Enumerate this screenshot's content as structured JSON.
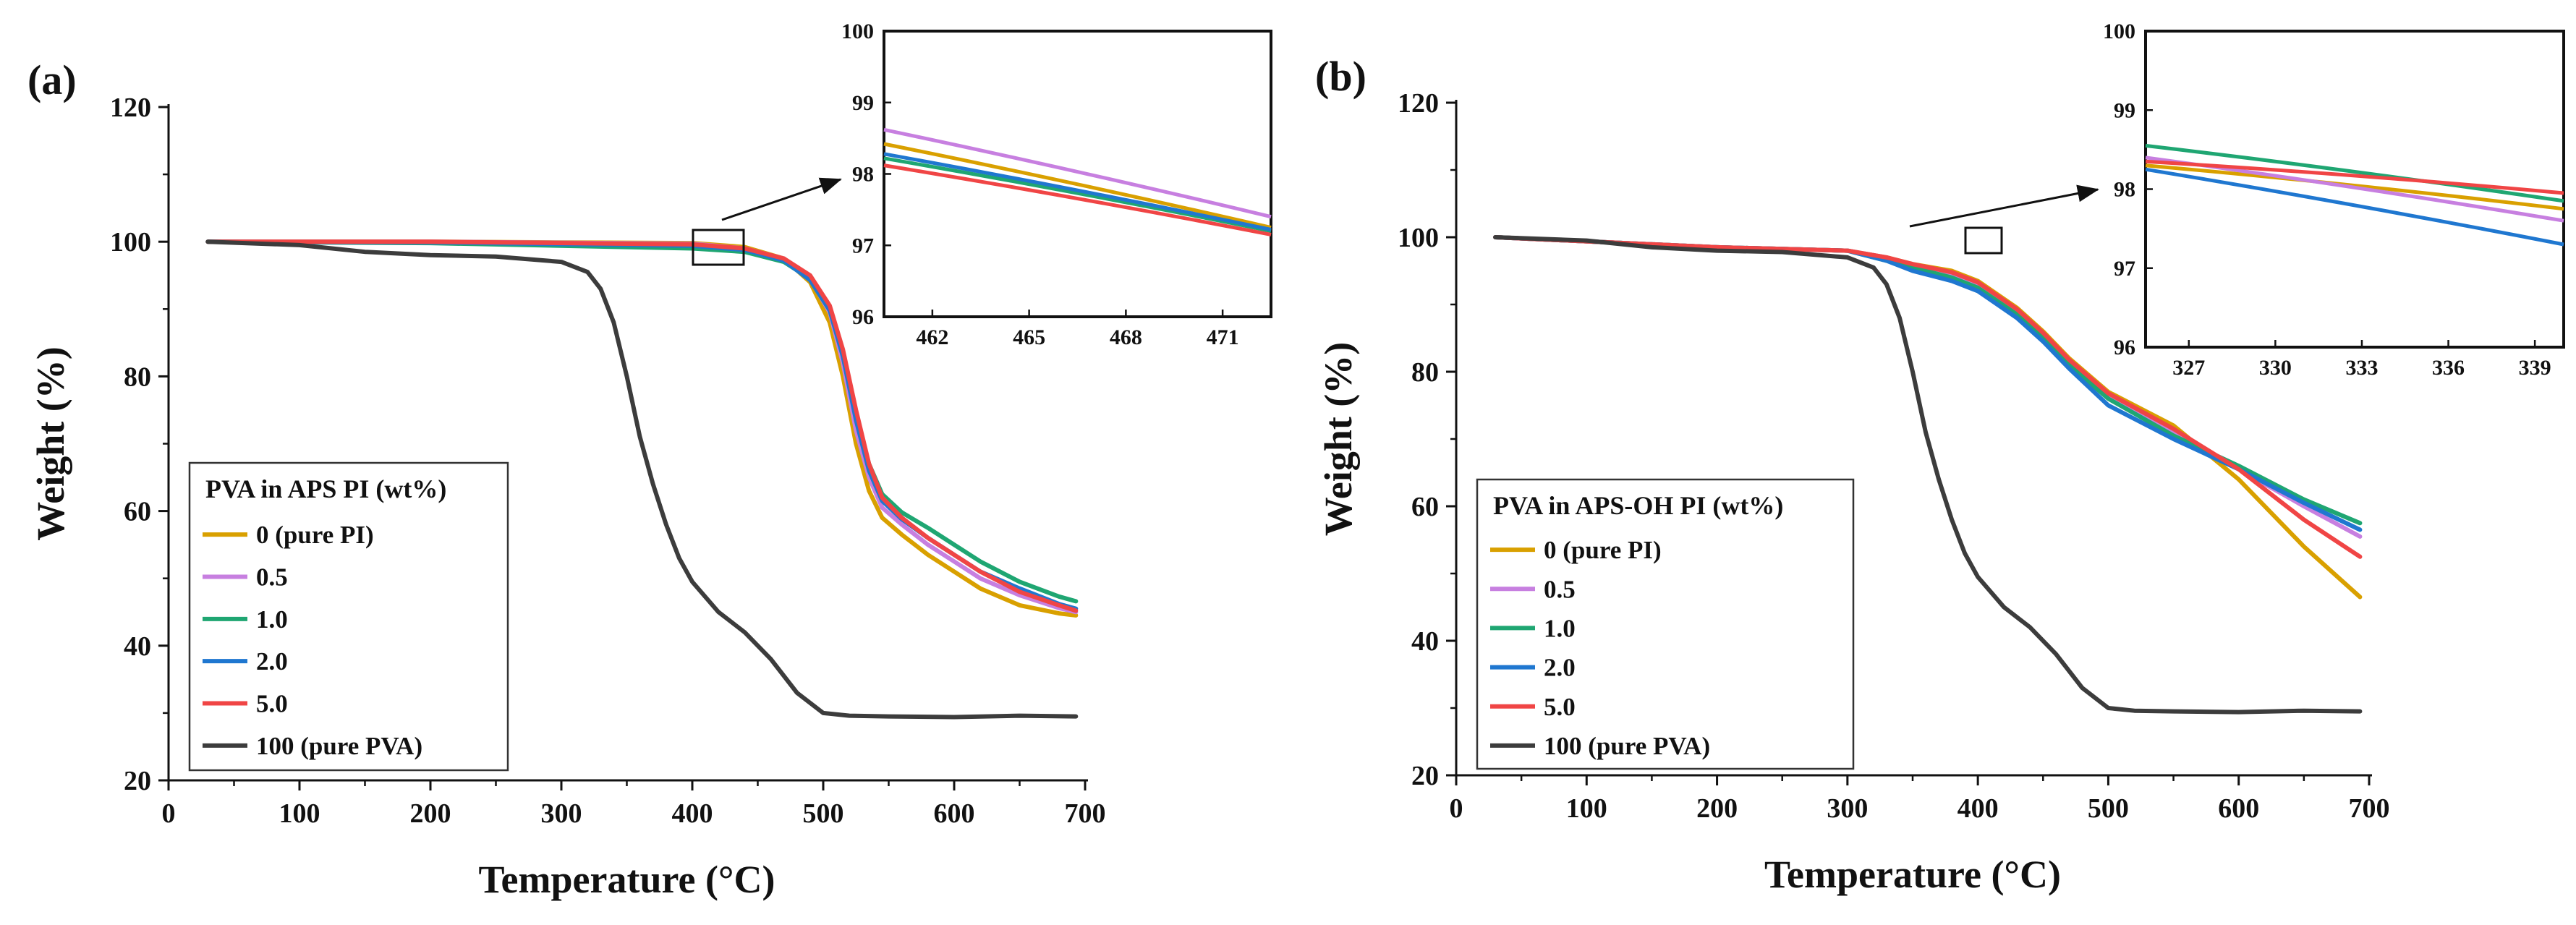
{
  "panels": [
    {
      "panel_label": "(a)",
      "legend_title": "PVA in APS PI (wt%)",
      "chart_data": {
        "type": "line",
        "title": "",
        "xlabel": "Temperature (°C)",
        "ylabel": "Weight (%)",
        "xlim": [
          0,
          700
        ],
        "ylim": [
          20,
          120
        ],
        "xticks": [
          0,
          100,
          200,
          300,
          400,
          500,
          600,
          700
        ],
        "yticks": [
          20,
          40,
          60,
          80,
          100,
          120
        ],
        "legend_position": "bottom-left",
        "series": [
          {
            "name": "0 (pure PI)",
            "color": "#D9A000",
            "x": [
              30,
              200,
              400,
              440,
              470,
              490,
              505,
              515,
              525,
              535,
              545,
              560,
              580,
              600,
              620,
              650,
              680,
              693
            ],
            "y": [
              100,
              100,
              99.8,
              99.2,
              97.5,
              94,
              88,
              80,
              70,
              63,
              59,
              56.5,
              53.5,
              51,
              48.5,
              46,
              44.8,
              44.5
            ]
          },
          {
            "name": "0.5",
            "color": "#C77FE0",
            "x": [
              30,
              200,
              400,
              440,
              470,
              490,
              505,
              515,
              525,
              535,
              545,
              560,
              580,
              600,
              620,
              650,
              680,
              693
            ],
            "y": [
              100,
              100,
              99.7,
              99,
              97.5,
              94.5,
              89.5,
              82,
              72,
              65,
              60.5,
              58,
              55,
              52.5,
              50,
              47.5,
              45.6,
              45
            ]
          },
          {
            "name": "1.0",
            "color": "#1FA672",
            "x": [
              30,
              200,
              400,
              440,
              470,
              490,
              505,
              515,
              525,
              535,
              545,
              560,
              580,
              600,
              620,
              650,
              680,
              693
            ],
            "y": [
              100,
              99.8,
              99,
              98.5,
              97,
              94.5,
              90,
              83,
              74,
              67,
              62.5,
              59.8,
              57.5,
              55,
              52.5,
              49.5,
              47.3,
              46.6
            ]
          },
          {
            "name": "2.0",
            "color": "#1F77D0",
            "x": [
              30,
              200,
              400,
              440,
              470,
              490,
              505,
              515,
              525,
              535,
              545,
              560,
              580,
              600,
              620,
              650,
              680,
              693
            ],
            "y": [
              100,
              99.9,
              99.4,
              98.8,
              97.2,
              94.3,
              89.8,
              83,
              73.5,
              66,
              61.5,
              58.8,
              56,
              53.5,
              51,
              48.5,
              46.2,
              45.5
            ]
          },
          {
            "name": "5.0",
            "color": "#F04545",
            "x": [
              30,
              200,
              400,
              440,
              470,
              490,
              505,
              515,
              525,
              535,
              545,
              560,
              580,
              600,
              620,
              650,
              680,
              693
            ],
            "y": [
              100,
              100,
              99.6,
              99,
              97.5,
              95,
              90.5,
              84,
              75,
              67,
              62,
              59,
              56,
              53.5,
              51,
              48,
              46,
              45.2
            ]
          },
          {
            "name": "100 (pure PVA)",
            "color": "#3C3C3C",
            "x": [
              30,
              100,
              150,
              200,
              250,
              300,
              320,
              330,
              340,
              350,
              360,
              370,
              380,
              390,
              400,
              420,
              440,
              460,
              480,
              500,
              520,
              550,
              600,
              650,
              693
            ],
            "y": [
              100,
              99.5,
              98.5,
              98,
              97.8,
              97,
              95.5,
              93,
              88,
              80,
              71,
              64,
              58,
              53,
              49.5,
              45,
              42,
              38,
              33,
              30,
              29.6,
              29.5,
              29.4,
              29.6,
              29.5
            ]
          }
        ]
      },
      "inset": {
        "xlim": [
          460.5,
          472.5
        ],
        "ylim": [
          96,
          100
        ],
        "xticks": [
          462,
          465,
          468,
          471
        ],
        "yticks": [
          96,
          97,
          98,
          99,
          100
        ],
        "series": [
          {
            "name": "0 (pure PI)",
            "y_start": 98.42,
            "y_end": 97.25
          },
          {
            "name": "0.5",
            "y_start": 98.62,
            "y_end": 97.4
          },
          {
            "name": "1.0",
            "y_start": 98.22,
            "y_end": 97.2
          },
          {
            "name": "2.0",
            "y_start": 98.28,
            "y_end": 97.22
          },
          {
            "name": "5.0",
            "y_start": 98.12,
            "y_end": 97.15
          }
        ]
      }
    },
    {
      "panel_label": "(b)",
      "legend_title": "PVA in APS-OH PI (wt%)",
      "chart_data": {
        "type": "line",
        "title": "",
        "xlabel": "Temperature (°C)",
        "ylabel": "Weight (%)",
        "xlim": [
          0,
          700
        ],
        "ylim": [
          20,
          120
        ],
        "xticks": [
          0,
          100,
          200,
          300,
          400,
          500,
          600,
          700
        ],
        "yticks": [
          20,
          40,
          60,
          80,
          100,
          120
        ],
        "legend_position": "bottom-left",
        "series": [
          {
            "name": "0 (pure PI)",
            "color": "#D9A000",
            "x": [
              30,
              200,
              300,
              330,
              350,
              380,
              400,
              430,
              450,
              470,
              500,
              550,
              600,
              650,
              693
            ],
            "y": [
              100,
              98.5,
              98,
              97,
              96,
              95,
              93.5,
              89.5,
              86,
              82,
              77,
              72,
              64,
              54,
              46.5
            ]
          },
          {
            "name": "0.5",
            "color": "#C77FE0",
            "x": [
              30,
              200,
              300,
              330,
              350,
              380,
              400,
              430,
              450,
              470,
              500,
              550,
              600,
              650,
              693
            ],
            "y": [
              100,
              98.5,
              98,
              97,
              95.8,
              94.5,
              93,
              89,
              85.5,
              81.5,
              76.5,
              71,
              65.5,
              60,
              55.5
            ]
          },
          {
            "name": "1.0",
            "color": "#1FA672",
            "x": [
              30,
              200,
              300,
              330,
              350,
              380,
              400,
              430,
              450,
              470,
              500,
              550,
              600,
              650,
              693
            ],
            "y": [
              100,
              98.5,
              98,
              96.5,
              95.5,
              94,
              92.5,
              88.5,
              85,
              81,
              76,
              70.5,
              66,
              61,
              57.5
            ]
          },
          {
            "name": "2.0",
            "color": "#1F77D0",
            "x": [
              30,
              200,
              300,
              330,
              350,
              380,
              400,
              430,
              450,
              470,
              500,
              550,
              600,
              650,
              693
            ],
            "y": [
              100,
              98.5,
              98,
              96.5,
              95,
              93.5,
              92,
              88,
              84.5,
              80.5,
              75,
              70,
              65.5,
              60.5,
              56.5
            ]
          },
          {
            "name": "5.0",
            "color": "#F04545",
            "x": [
              30,
              200,
              300,
              330,
              350,
              380,
              400,
              430,
              450,
              470,
              500,
              550,
              600,
              650,
              693
            ],
            "y": [
              100,
              98.5,
              98,
              97,
              96,
              94.8,
              93.3,
              89.3,
              85.8,
              81.8,
              76.8,
              71.5,
              65.5,
              58,
              52.5
            ]
          },
          {
            "name": "100 (pure PVA)",
            "color": "#3C3C3C",
            "x": [
              30,
              100,
              150,
              200,
              250,
              300,
              320,
              330,
              340,
              350,
              360,
              370,
              380,
              390,
              400,
              420,
              440,
              460,
              480,
              500,
              520,
              550,
              600,
              650,
              693
            ],
            "y": [
              100,
              99.5,
              98.5,
              98,
              97.8,
              97,
              95.5,
              93,
              88,
              80,
              71,
              64,
              58,
              53,
              49.5,
              45,
              42,
              38,
              33,
              30,
              29.6,
              29.5,
              29.4,
              29.6,
              29.5
            ]
          }
        ]
      },
      "inset": {
        "xlim": [
          325.5,
          340
        ],
        "ylim": [
          96,
          100
        ],
        "xticks": [
          327,
          330,
          333,
          336,
          339
        ],
        "yticks": [
          96,
          97,
          98,
          99,
          100
        ],
        "series": [
          {
            "name": "0 (pure PI)",
            "y_start": 98.3,
            "y_end": 97.75
          },
          {
            "name": "0.5",
            "y_start": 98.4,
            "y_end": 97.6
          },
          {
            "name": "1.0",
            "y_start": 98.55,
            "y_end": 97.85
          },
          {
            "name": "2.0",
            "y_start": 98.25,
            "y_end": 97.3
          },
          {
            "name": "5.0",
            "y_start": 98.35,
            "y_end": 97.95
          }
        ]
      }
    }
  ]
}
